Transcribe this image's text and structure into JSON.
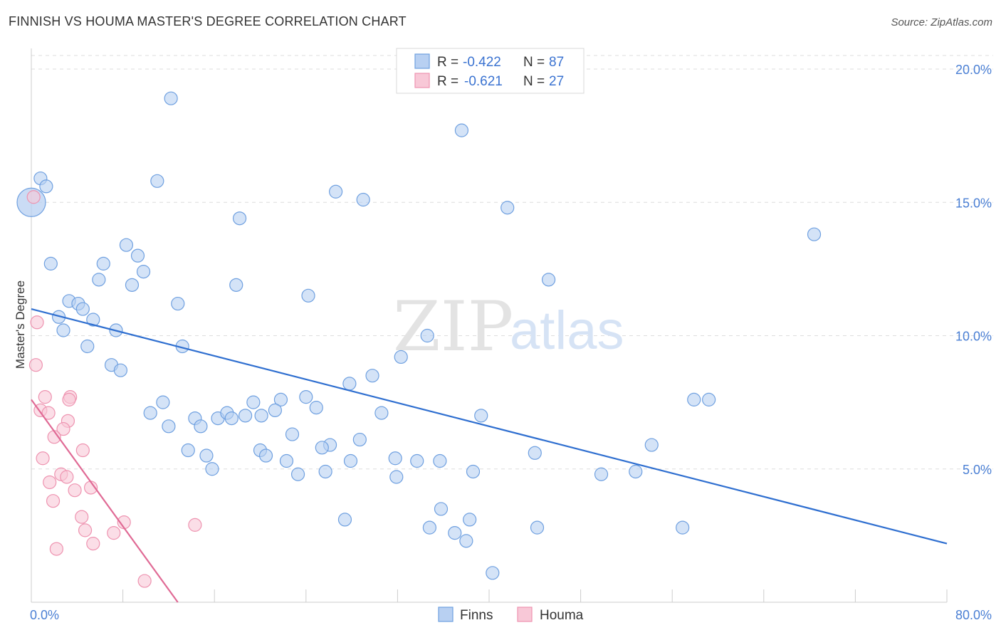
{
  "title": "FINNISH VS HOUMA MASTER'S DEGREE CORRELATION CHART",
  "source": "Source: ZipAtlas.com",
  "watermark": {
    "zip": "ZIP",
    "atlas": "atlas"
  },
  "colors": {
    "finns": "#6fa0e0",
    "finns_fill": "#b8d0f2",
    "finns_line": "#2f6fd0",
    "houma": "#ee93b0",
    "houma_fill": "#f8c8d7",
    "houma_line": "#e06a95",
    "tick": "#4a7fd4",
    "grid": "#dddddd"
  },
  "legend": {
    "rows": [
      {
        "r_label": "R =",
        "r_value": "-0.422",
        "n_label": "N =",
        "n_value": "87"
      },
      {
        "r_label": "R =",
        "r_value": "-0.621",
        "n_label": "N =",
        "n_value": "27"
      }
    ]
  },
  "chart_data": {
    "type": "scatter",
    "title": "FINNISH VS HOUMA MASTER'S DEGREE CORRELATION CHART",
    "xlabel": "",
    "ylabel": "Master's Degree",
    "xlim": [
      0,
      80
    ],
    "ylim": [
      0,
      20.5
    ],
    "x_tick_labels": [
      {
        "value": 0,
        "label": "0.0%"
      },
      {
        "value": 80,
        "label": "80.0%"
      }
    ],
    "y_tick_labels": [
      {
        "value": 5,
        "label": "5.0%"
      },
      {
        "value": 10,
        "label": "10.0%"
      },
      {
        "value": 15,
        "label": "15.0%"
      },
      {
        "value": 20,
        "label": "20.0%"
      }
    ],
    "grid": "horizontal dashed",
    "legend_position": "top-center and bottom-center",
    "series": [
      {
        "name": "Finns",
        "trend": {
          "x": [
            0,
            80
          ],
          "y": [
            11.0,
            2.2
          ]
        },
        "points": [
          [
            0.8,
            15.9
          ],
          [
            1.3,
            15.6
          ],
          [
            12.2,
            18.9
          ],
          [
            37.6,
            17.7
          ],
          [
            11.0,
            15.8
          ],
          [
            26.6,
            15.4
          ],
          [
            29.0,
            15.1
          ],
          [
            41.6,
            14.8
          ],
          [
            18.2,
            14.4
          ],
          [
            68.4,
            13.8
          ],
          [
            8.3,
            13.4
          ],
          [
            1.7,
            12.7
          ],
          [
            6.3,
            12.7
          ],
          [
            9.3,
            13.0
          ],
          [
            9.8,
            12.4
          ],
          [
            5.9,
            12.1
          ],
          [
            8.8,
            11.9
          ],
          [
            17.9,
            11.9
          ],
          [
            45.2,
            12.1
          ],
          [
            3.3,
            11.3
          ],
          [
            4.1,
            11.2
          ],
          [
            4.5,
            11.0
          ],
          [
            12.8,
            11.2
          ],
          [
            24.2,
            11.5
          ],
          [
            2.4,
            10.7
          ],
          [
            2.8,
            10.2
          ],
          [
            5.4,
            10.6
          ],
          [
            7.4,
            10.2
          ],
          [
            34.6,
            10.0
          ],
          [
            4.9,
            9.6
          ],
          [
            13.2,
            9.6
          ],
          [
            32.3,
            9.2
          ],
          [
            7.0,
            8.9
          ],
          [
            7.8,
            8.7
          ],
          [
            29.8,
            8.5
          ],
          [
            27.8,
            8.2
          ],
          [
            11.5,
            7.5
          ],
          [
            19.4,
            7.5
          ],
          [
            21.8,
            7.6
          ],
          [
            24.0,
            7.7
          ],
          [
            57.9,
            7.6
          ],
          [
            59.2,
            7.6
          ],
          [
            10.4,
            7.1
          ],
          [
            14.3,
            6.9
          ],
          [
            16.3,
            6.9
          ],
          [
            17.1,
            7.1
          ],
          [
            17.5,
            6.9
          ],
          [
            18.7,
            7.0
          ],
          [
            20.1,
            7.0
          ],
          [
            21.3,
            7.2
          ],
          [
            24.9,
            7.3
          ],
          [
            30.6,
            7.1
          ],
          [
            39.3,
            7.0
          ],
          [
            12.0,
            6.6
          ],
          [
            14.8,
            6.6
          ],
          [
            22.8,
            6.3
          ],
          [
            26.1,
            5.9
          ],
          [
            28.7,
            6.1
          ],
          [
            54.2,
            5.9
          ],
          [
            13.7,
            5.7
          ],
          [
            15.3,
            5.5
          ],
          [
            20.0,
            5.7
          ],
          [
            20.5,
            5.5
          ],
          [
            25.4,
            5.8
          ],
          [
            31.8,
            5.4
          ],
          [
            44.0,
            5.6
          ],
          [
            15.8,
            5.0
          ],
          [
            22.3,
            5.3
          ],
          [
            27.9,
            5.3
          ],
          [
            33.7,
            5.3
          ],
          [
            35.7,
            5.3
          ],
          [
            23.3,
            4.8
          ],
          [
            25.7,
            4.9
          ],
          [
            31.9,
            4.7
          ],
          [
            38.6,
            4.9
          ],
          [
            49.8,
            4.8
          ],
          [
            52.8,
            4.9
          ],
          [
            35.8,
            3.5
          ],
          [
            27.4,
            3.1
          ],
          [
            34.8,
            2.8
          ],
          [
            37.0,
            2.6
          ],
          [
            38.0,
            2.3
          ],
          [
            38.3,
            3.1
          ],
          [
            44.2,
            2.8
          ],
          [
            56.9,
            2.8
          ],
          [
            40.3,
            1.1
          ],
          [
            0.0,
            15.0
          ]
        ]
      },
      {
        "name": "Houma",
        "trend": {
          "x": [
            0,
            12.8
          ],
          "y": [
            7.6,
            0.0
          ]
        },
        "points": [
          [
            0.2,
            15.2
          ],
          [
            0.5,
            10.5
          ],
          [
            0.4,
            8.9
          ],
          [
            1.2,
            7.7
          ],
          [
            0.8,
            7.2
          ],
          [
            1.5,
            7.1
          ],
          [
            3.4,
            7.7
          ],
          [
            3.3,
            7.6
          ],
          [
            3.2,
            6.8
          ],
          [
            2.8,
            6.5
          ],
          [
            2.0,
            6.2
          ],
          [
            1.0,
            5.4
          ],
          [
            4.5,
            5.7
          ],
          [
            2.6,
            4.8
          ],
          [
            3.1,
            4.7
          ],
          [
            1.6,
            4.5
          ],
          [
            3.8,
            4.2
          ],
          [
            5.2,
            4.3
          ],
          [
            1.9,
            3.8
          ],
          [
            4.4,
            3.2
          ],
          [
            8.1,
            3.0
          ],
          [
            14.3,
            2.9
          ],
          [
            4.7,
            2.7
          ],
          [
            7.2,
            2.6
          ],
          [
            5.4,
            2.2
          ],
          [
            2.2,
            2.0
          ],
          [
            9.9,
            0.8
          ]
        ]
      }
    ]
  }
}
